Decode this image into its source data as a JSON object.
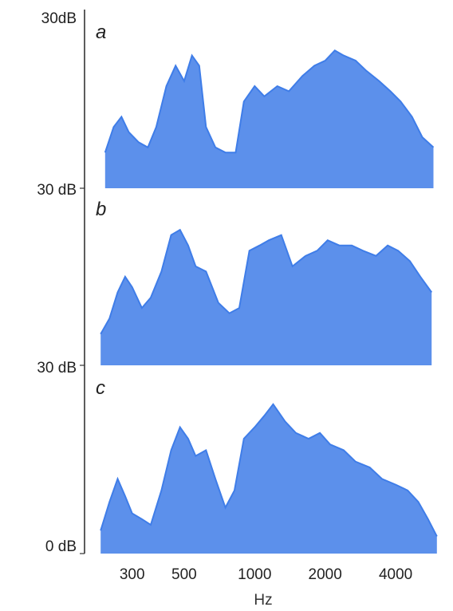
{
  "chart_data": {
    "type": "line",
    "xlabel": "Hz",
    "x_scale": "log",
    "xlim": [
      200,
      6500
    ],
    "x_ticks": [
      {
        "value": 300,
        "label": "300"
      },
      {
        "value": 500,
        "label": "500"
      },
      {
        "value": 1000,
        "label": "1000"
      },
      {
        "value": 2000,
        "label": "2000"
      },
      {
        "value": 4000,
        "label": "4000"
      }
    ],
    "color": "#3f7de8",
    "grid": false,
    "panels": [
      {
        "label": "a",
        "ytick_top": "30dB",
        "ylim": [
          0,
          30
        ],
        "x": [
          230,
          250,
          270,
          290,
          320,
          350,
          380,
          420,
          460,
          500,
          540,
          580,
          620,
          680,
          750,
          830,
          900,
          1000,
          1100,
          1250,
          1400,
          1600,
          1800,
          2000,
          2200,
          2400,
          2700,
          3000,
          3400,
          3800,
          4200,
          4700,
          5200,
          5800
        ],
        "values": [
          7,
          12,
          14,
          11,
          9,
          8,
          12,
          20,
          24,
          21,
          26,
          24,
          12,
          8,
          7,
          7,
          17,
          20,
          18,
          20,
          19,
          22,
          24,
          25,
          27,
          26,
          25,
          23,
          21,
          19,
          17,
          14,
          10,
          8
        ]
      },
      {
        "label": "b",
        "ytick_top": "30 dB",
        "ylim": [
          0,
          30
        ],
        "x": [
          220,
          240,
          260,
          280,
          300,
          330,
          360,
          400,
          440,
          480,
          520,
          560,
          620,
          700,
          780,
          860,
          950,
          1050,
          1150,
          1300,
          1450,
          1650,
          1850,
          2050,
          2300,
          2600,
          2900,
          3300,
          3700,
          4100,
          4600,
          5100,
          5700
        ],
        "values": [
          6,
          9,
          14,
          17,
          15,
          11,
          13,
          18,
          25,
          26,
          23,
          19,
          18,
          12,
          10,
          11,
          22,
          23,
          24,
          25,
          19,
          21,
          22,
          24,
          23,
          23,
          22,
          21,
          23,
          22,
          20,
          17,
          14
        ]
      },
      {
        "label": "c",
        "ytick_top": "30 dB",
        "ytick_bottom": "0 dB",
        "ylim": [
          0,
          30
        ],
        "x": [
          220,
          240,
          260,
          280,
          300,
          330,
          360,
          400,
          440,
          480,
          520,
          560,
          620,
          680,
          750,
          820,
          900,
          1000,
          1100,
          1200,
          1350,
          1500,
          1700,
          1900,
          2100,
          2400,
          2700,
          3100,
          3500,
          4000,
          4500,
          5000,
          5500,
          6000
        ],
        "values": [
          4,
          9,
          13,
          10,
          7,
          6,
          5,
          11,
          18,
          22,
          20,
          17,
          18,
          13,
          8,
          11,
          20,
          22,
          24,
          26,
          23,
          21,
          20,
          21,
          19,
          18,
          16,
          15,
          13,
          12,
          11,
          9,
          6,
          3
        ]
      }
    ]
  }
}
